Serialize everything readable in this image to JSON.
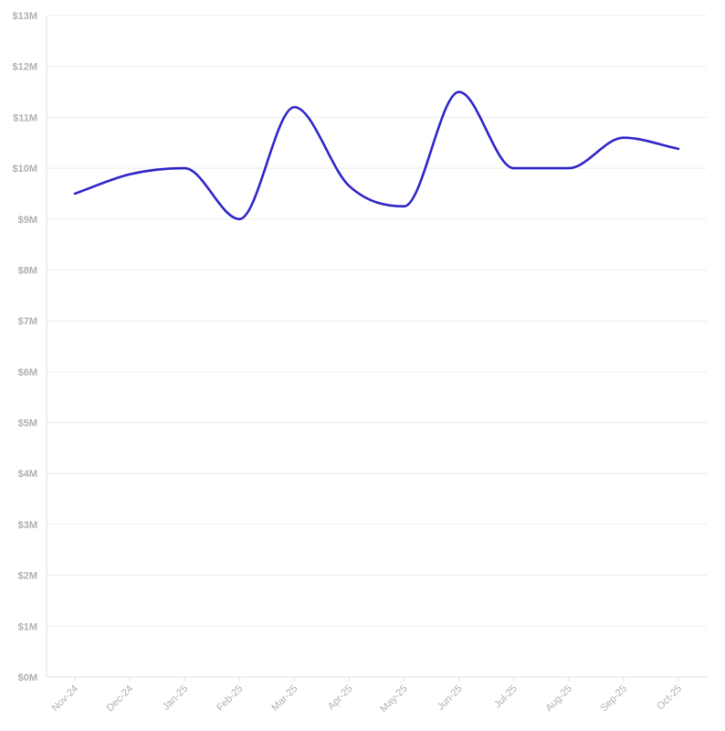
{
  "chart_data": {
    "type": "line",
    "categories": [
      "Nov-24",
      "Dec-24",
      "Jan-25",
      "Feb-25",
      "Mar-25",
      "Apr-25",
      "May-25",
      "Jun-25",
      "Jul-25",
      "Aug-25",
      "Sep-25",
      "Oct-25"
    ],
    "series": [
      {
        "values": [
          9.5,
          9.88,
          10.0,
          9.0,
          11.2,
          9.65,
          9.25,
          11.5,
          10.0,
          10.0,
          10.6,
          10.38
        ],
        "color": "#2f24c8"
      }
    ],
    "y_ticks": [
      "$0M",
      "$1M",
      "$2M",
      "$3M",
      "$4M",
      "$5M",
      "$6M",
      "$7M",
      "$8M",
      "$9M",
      "$10M",
      "$11M",
      "$12M",
      "$13M"
    ],
    "ylim": [
      0,
      13
    ],
    "grid": true,
    "title": "",
    "xlabel": "",
    "ylabel": ""
  }
}
